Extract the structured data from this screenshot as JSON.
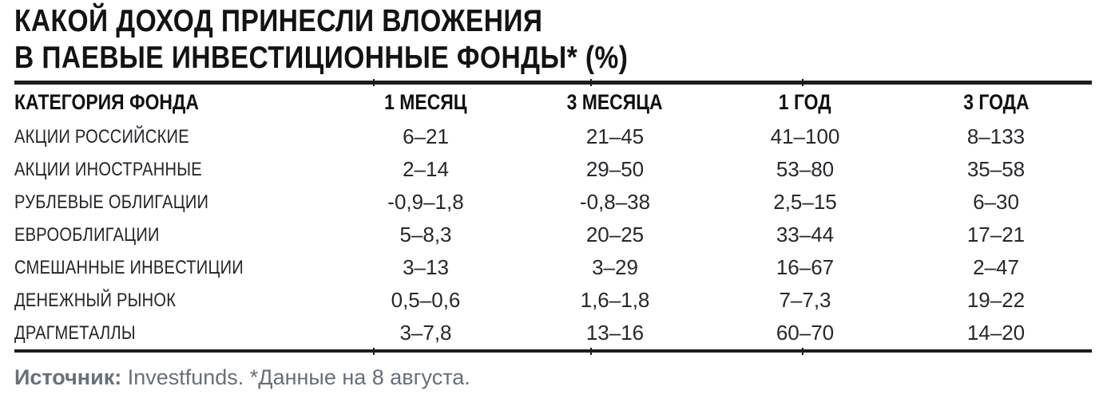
{
  "title": {
    "line1": "КАКОЙ ДОХОД ПРИНЕСЛИ ВЛОЖЕНИЯ",
    "line2": "В ПАЕВЫЕ ИНВЕСТИЦИОННЫЕ ФОНДЫ* (%)"
  },
  "table": {
    "headers": [
      "КАТЕГОРИЯ ФОНДА",
      "1 МЕСЯЦ",
      "3 МЕСЯЦА",
      "1 ГОД",
      "3 ГОДА"
    ],
    "rows": [
      {
        "category": "АКЦИИ РОССИЙСКИЕ",
        "values": [
          "6–21",
          "21–45",
          "41–100",
          "8–133"
        ]
      },
      {
        "category": "АКЦИИ ИНОСТРАННЫЕ",
        "values": [
          "2–14",
          "29–50",
          "53–80",
          "35–58"
        ]
      },
      {
        "category": "РУБЛЕВЫЕ ОБЛИГАЦИИ",
        "values": [
          "-0,9–1,8",
          "-0,8–38",
          "2,5–15",
          "6–30"
        ]
      },
      {
        "category": "ЕВРООБЛИГАЦИИ",
        "values": [
          "5–8,3",
          "20–25",
          "33–44",
          "17–21"
        ]
      },
      {
        "category": "СМЕШАННЫЕ ИНВЕСТИЦИИ",
        "values": [
          "3–13",
          "3–29",
          "16–67",
          "2–47"
        ]
      },
      {
        "category": "ДЕНЕЖНЫЙ РЫНОК",
        "values": [
          "0,5–0,6",
          "1,6–1,8",
          "7–7,3",
          "19–22"
        ]
      },
      {
        "category": "ДРАГМЕТАЛЛЫ",
        "values": [
          "3–7,8",
          "13–16",
          "60–70",
          "14–20"
        ]
      }
    ]
  },
  "footer": {
    "source_label": "Источник:",
    "source_rest": " Investfunds. *Данные на 8 августа."
  },
  "colors": {
    "title_text": "#131313",
    "rule": "#1c1c1c",
    "body_text": "#26282c",
    "footer_text": "#65707a",
    "background": "#ffffff"
  },
  "chart_data": {
    "type": "table",
    "title": "КАКОЙ ДОХОД ПРИНЕСЛИ ВЛОЖЕНИЯ В ПАЕВЫЕ ИНВЕСТИЦИОННЫЕ ФОНДЫ* (%)",
    "columns": [
      "КАТЕГОРИЯ ФОНДА",
      "1 МЕСЯЦ",
      "3 МЕСЯЦА",
      "1 ГОД",
      "3 ГОДА"
    ],
    "rows": [
      [
        "АКЦИИ РОССИЙСКИЕ",
        "6–21",
        "21–45",
        "41–100",
        "8–133"
      ],
      [
        "АКЦИИ ИНОСТРАННЫЕ",
        "2–14",
        "29–50",
        "53–80",
        "35–58"
      ],
      [
        "РУБЛЕВЫЕ ОБЛИГАЦИИ",
        "-0,9–1,8",
        "-0,8–38",
        "2,5–15",
        "6–30"
      ],
      [
        "ЕВРООБЛИГАЦИИ",
        "5–8,3",
        "20–25",
        "33–44",
        "17–21"
      ],
      [
        "СМЕШАННЫЕ ИНВЕСТИЦИИ",
        "3–13",
        "3–29",
        "16–67",
        "2–47"
      ],
      [
        "ДЕНЕЖНЫЙ РЫНОК",
        "0,5–0,6",
        "1,6–1,8",
        "7–7,3",
        "19–22"
      ],
      [
        "ДРАГМЕТАЛЛЫ",
        "3–7,8",
        "13–16",
        "60–70",
        "14–20"
      ]
    ],
    "units": "%",
    "source_note": "Источник: Investfunds. *Данные на 8 августа."
  }
}
